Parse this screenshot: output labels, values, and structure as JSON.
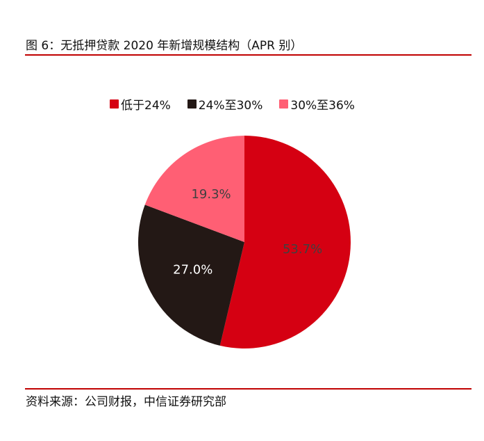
{
  "header": {
    "title": "图 6：无抵押贷款 2020 年新增规模结构（APR 别）"
  },
  "legend": [
    {
      "label": "低于24%",
      "color": "#d50012"
    },
    {
      "label": "24%至30%",
      "color": "#231815"
    },
    {
      "label": "30%至36%",
      "color": "#ff5f74"
    }
  ],
  "footer": {
    "source": "资料来源：公司财报，中信证券研究部"
  },
  "colors": {
    "rule": "#c00000",
    "label_dark": "#404040",
    "label_light": "#ffffff"
  },
  "chart_data": {
    "type": "pie",
    "title": "无抵押贷款 2020 年新增规模结构（APR 别）",
    "categories": [
      "低于24%",
      "24%至30%",
      "30%至36%"
    ],
    "values": [
      53.7,
      27.0,
      19.3
    ],
    "labels": [
      "53.7%",
      "27.0%",
      "19.3%"
    ],
    "colors": [
      "#d50012",
      "#231815",
      "#ff5f74"
    ],
    "start_angle": "12 o'clock, clockwise",
    "legend_position": "top"
  }
}
